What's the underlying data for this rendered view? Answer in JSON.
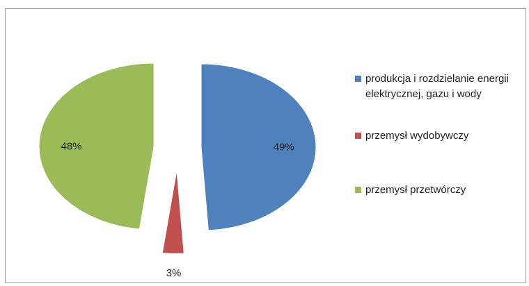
{
  "chart_data": {
    "type": "pie",
    "categories": [
      "produkcja i rozdzielanie energii elektrycznej, gazu i wody",
      "przemysł wydobywczy",
      "przemysł przetwórczy"
    ],
    "values": [
      49,
      3,
      48
    ],
    "data_labels": [
      "49%",
      "3%",
      "48%"
    ],
    "colors": [
      "#4f81bd",
      "#c0504d",
      "#9bbb59"
    ],
    "legend_position": "right",
    "exploded": true
  }
}
